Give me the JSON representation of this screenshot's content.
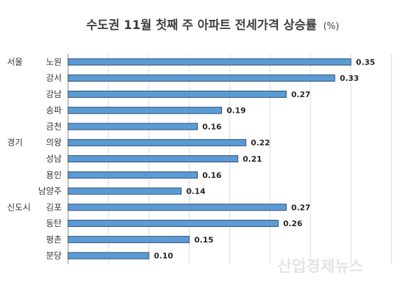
{
  "chart_data": {
    "type": "bar",
    "orientation": "horizontal",
    "title": "수도권 11월 첫째 주 아파트 전세가격 상승률",
    "unit": "(%)",
    "groups": [
      {
        "name": "서울",
        "start_index": 0
      },
      {
        "name": "경기",
        "start_index": 5
      },
      {
        "name": "신도시",
        "start_index": 9
      }
    ],
    "categories": [
      "노원",
      "강서",
      "강남",
      "송파",
      "금천",
      "의왕",
      "성남",
      "용인",
      "남양주",
      "김포",
      "동탄",
      "평촌",
      "분당"
    ],
    "values": [
      0.35,
      0.33,
      0.27,
      0.19,
      0.16,
      0.22,
      0.21,
      0.16,
      0.14,
      0.27,
      0.26,
      0.15,
      0.1
    ],
    "value_labels": [
      "0.35",
      "0.33",
      "0.27",
      "0.19",
      "0.16",
      "0.22",
      "0.21",
      "0.16",
      "0.14",
      "0.27",
      "0.26",
      "0.15",
      "0.10"
    ],
    "xlim": [
      0,
      0.4
    ],
    "grid": true,
    "bar_color": "#5b9bd5",
    "bar_edge_color": "#2f4f70"
  },
  "watermark": "산업경제뉴스"
}
